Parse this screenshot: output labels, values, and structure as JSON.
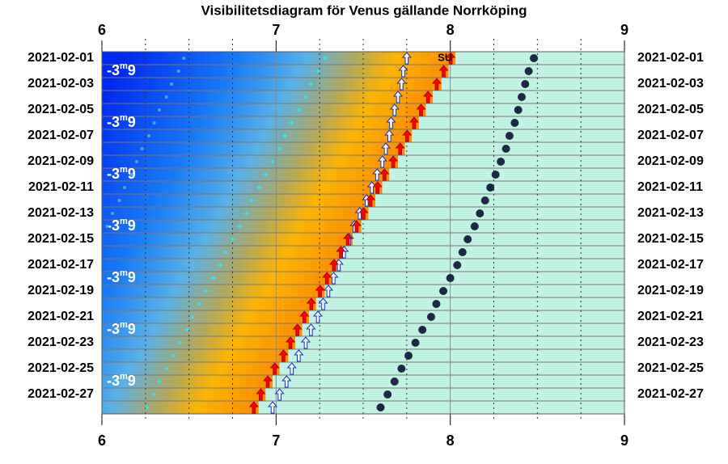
{
  "chart_data": {
    "type": "visibility",
    "title": "Visibilitetsdiagram för Venus gällande Norrköping",
    "categories": [
      "2021-02-01",
      null,
      "2021-02-03",
      null,
      "2021-02-05",
      null,
      "2021-02-07",
      null,
      "2021-02-09",
      null,
      "2021-02-11",
      null,
      "2021-02-13",
      null,
      "2021-02-15",
      null,
      "2021-02-17",
      null,
      "2021-02-19",
      null,
      "2021-02-21",
      null,
      "2021-02-23",
      null,
      "2021-02-25",
      null,
      "2021-02-27",
      null
    ],
    "xlim": [
      6,
      9
    ],
    "xticks": [
      6,
      7,
      8,
      9
    ],
    "minor_xticks": [
      6.25,
      6.5,
      6.75,
      7.25,
      7.5,
      7.75,
      8.25,
      8.5,
      8.75
    ],
    "sunrise": {
      "color": "#ff0000",
      "values": [
        8.03,
        7.99,
        7.95,
        7.9,
        7.86,
        7.82,
        7.78,
        7.74,
        7.7,
        7.65,
        7.61,
        7.57,
        7.53,
        7.49,
        7.44,
        7.4,
        7.36,
        7.32,
        7.28,
        7.23,
        7.19,
        7.15,
        7.11,
        7.07,
        7.02,
        6.98,
        6.94,
        6.9
      ]
    },
    "sun_label": "SU",
    "series": [
      {
        "marker": "dot",
        "color": "#1a2a40",
        "values": [
          8.48,
          8.45,
          8.43,
          8.41,
          8.39,
          8.37,
          8.34,
          8.32,
          8.29,
          8.26,
          8.23,
          8.2,
          8.17,
          8.14,
          8.1,
          8.07,
          8.04,
          8.0,
          7.96,
          7.92,
          7.89,
          7.84,
          7.8,
          7.76,
          7.72,
          7.68,
          7.64,
          7.6
        ]
      },
      {
        "marker": "arrow",
        "color": "#ffffff",
        "values": [
          7.75,
          7.73,
          7.72,
          7.7,
          7.68,
          7.66,
          7.65,
          7.63,
          7.61,
          7.58,
          7.55,
          7.52,
          7.48,
          7.45,
          7.42,
          7.39,
          7.36,
          7.33,
          7.3,
          7.27,
          7.24,
          7.2,
          7.17,
          7.13,
          7.09,
          7.06,
          7.02,
          6.98
        ]
      },
      {
        "marker": "small-dot",
        "color": "#40e0e0",
        "values": [
          7.28,
          7.24,
          7.2,
          7.17,
          7.13,
          7.09,
          7.05,
          7.02,
          6.98,
          6.94,
          6.9,
          6.86,
          6.83,
          6.79,
          6.75,
          6.71,
          6.68,
          6.64,
          6.6,
          6.56,
          6.52,
          6.49,
          6.45,
          6.41,
          6.37,
          6.33,
          6.3,
          6.26
        ]
      },
      {
        "marker": "small-dot",
        "color": "#5a9cf0",
        "values": [
          6.47,
          6.44,
          6.4,
          6.37,
          6.33,
          6.3,
          6.27,
          6.23,
          6.2,
          6.17,
          6.13,
          6.1,
          6.06,
          6.03,
          null,
          null,
          null,
          null,
          null,
          null,
          null,
          null,
          null,
          null,
          null,
          null,
          null,
          null
        ]
      }
    ],
    "magnitude_labels": [
      null,
      [
        "-3",
        "m",
        "9"
      ],
      null,
      null,
      null,
      [
        "-3",
        "m",
        "9"
      ],
      null,
      null,
      null,
      [
        "-3",
        "m",
        "9"
      ],
      null,
      null,
      null,
      [
        "-3",
        "m",
        "9"
      ],
      null,
      null,
      null,
      [
        "-3",
        "m",
        "9"
      ],
      null,
      null,
      null,
      [
        "-3",
        "m",
        "9"
      ],
      null,
      null,
      null,
      [
        "-3",
        "m",
        "9"
      ],
      null,
      null
    ]
  }
}
